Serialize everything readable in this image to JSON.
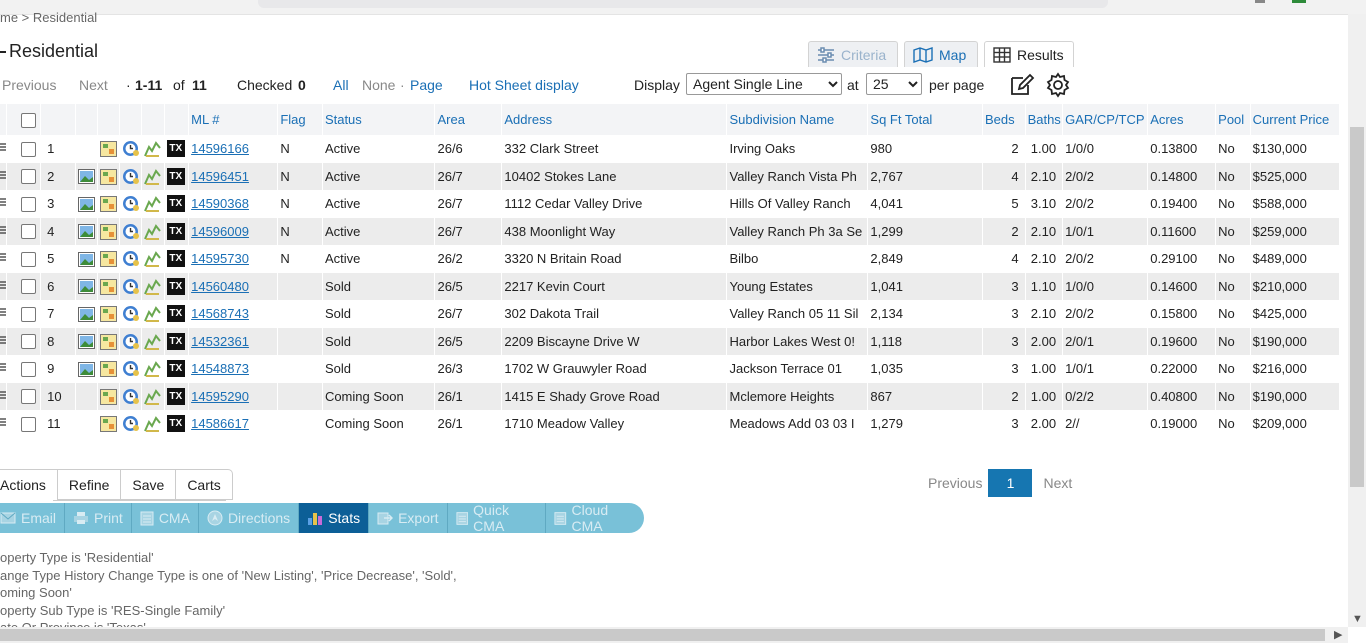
{
  "breadcrumb": "me > Residential",
  "page_title": "Residential",
  "view_tabs": [
    {
      "label": "Criteria",
      "icon": "sliders-icon"
    },
    {
      "label": "Map",
      "icon": "map-icon"
    },
    {
      "label": "Results",
      "icon": "grid-icon"
    }
  ],
  "toolbar": {
    "previous": "Previous",
    "next": "Next",
    "range_prefix": "·",
    "range": "1-11",
    "of_label": "of",
    "total": "11",
    "checked_label": "Checked",
    "checked_count": "0",
    "all": "All",
    "none": "None",
    "dot": "·",
    "page": "Page",
    "hot_sheet": "Hot Sheet display",
    "display_label": "Display",
    "display_value": "Agent Single Line",
    "at_label": "at",
    "per_page_value": "25",
    "per_page_label": "per page"
  },
  "columns": [
    "ML #",
    "Flag",
    "Status",
    "Area",
    "Address",
    "Subdivision Name",
    "Sq Ft Total",
    "Beds",
    "Baths",
    "GAR/CP/TCP",
    "Acres",
    "Pool",
    "Current Price"
  ],
  "rows": [
    {
      "n": "1",
      "photo": false,
      "ml": "14596166",
      "flag": "N",
      "status": "Active",
      "area": "26/6",
      "address": "332 Clark Street",
      "subdivision": "Irving Oaks",
      "sqft": "980",
      "beds": "2",
      "baths": "1.00",
      "gar": "1/0/0",
      "acres": "0.13800",
      "pool": "No",
      "price": "$130,000"
    },
    {
      "n": "2",
      "photo": true,
      "ml": "14596451",
      "flag": "N",
      "status": "Active",
      "area": "26/7",
      "address": "10402 Stokes Lane",
      "subdivision": "Valley Ranch Vista Ph",
      "sqft": "2,767",
      "beds": "4",
      "baths": "2.10",
      "gar": "2/0/2",
      "acres": "0.14800",
      "pool": "No",
      "price": "$525,000"
    },
    {
      "n": "3",
      "photo": true,
      "ml": "14590368",
      "flag": "N",
      "status": "Active",
      "area": "26/7",
      "address": "1112 Cedar Valley Drive",
      "subdivision": "Hills Of Valley Ranch",
      "sqft": "4,041",
      "beds": "5",
      "baths": "3.10",
      "gar": "2/0/2",
      "acres": "0.19400",
      "pool": "No",
      "price": "$588,000"
    },
    {
      "n": "4",
      "photo": true,
      "ml": "14596009",
      "flag": "N",
      "status": "Active",
      "area": "26/7",
      "address": "438 Moonlight Way",
      "subdivision": "Valley Ranch Ph 3a Se",
      "sqft": "1,299",
      "beds": "2",
      "baths": "2.10",
      "gar": "1/0/1",
      "acres": "0.11600",
      "pool": "No",
      "price": "$259,000"
    },
    {
      "n": "5",
      "photo": true,
      "ml": "14595730",
      "flag": "N",
      "status": "Active",
      "area": "26/2",
      "address": "3320 N Britain Road",
      "subdivision": "Bilbo",
      "sqft": "2,849",
      "beds": "4",
      "baths": "2.10",
      "gar": "2/0/2",
      "acres": "0.29100",
      "pool": "No",
      "price": "$489,000"
    },
    {
      "n": "6",
      "photo": true,
      "ml": "14560480",
      "flag": "",
      "status": "Sold",
      "area": "26/5",
      "address": "2217 Kevin Court",
      "subdivision": "Young Estates",
      "sqft": "1,041",
      "beds": "3",
      "baths": "1.10",
      "gar": "1/0/0",
      "acres": "0.14600",
      "pool": "No",
      "price": "$210,000"
    },
    {
      "n": "7",
      "photo": true,
      "ml": "14568743",
      "flag": "",
      "status": "Sold",
      "area": "26/7",
      "address": "302 Dakota Trail",
      "subdivision": "Valley Ranch 05 11 Sil",
      "sqft": "2,134",
      "beds": "3",
      "baths": "2.10",
      "gar": "2/0/2",
      "acres": "0.15800",
      "pool": "No",
      "price": "$425,000"
    },
    {
      "n": "8",
      "photo": true,
      "ml": "14532361",
      "flag": "",
      "status": "Sold",
      "area": "26/5",
      "address": "2209 Biscayne Drive W",
      "subdivision": "Harbor Lakes West 0!",
      "sqft": "1,118",
      "beds": "3",
      "baths": "2.00",
      "gar": "2/0/1",
      "acres": "0.19600",
      "pool": "No",
      "price": "$190,000"
    },
    {
      "n": "9",
      "photo": true,
      "ml": "14548873",
      "flag": "",
      "status": "Sold",
      "area": "26/3",
      "address": "1702 W Grauwyler Road",
      "subdivision": "Jackson Terrace 01",
      "sqft": "1,035",
      "beds": "3",
      "baths": "1.00",
      "gar": "1/0/1",
      "acres": "0.22000",
      "pool": "No",
      "price": "$216,000"
    },
    {
      "n": "10",
      "photo": false,
      "ml": "14595290",
      "flag": "",
      "status": "Coming Soon",
      "area": "26/1",
      "address": "1415 E Shady Grove Road",
      "subdivision": "Mclemore Heights",
      "sqft": "867",
      "beds": "2",
      "baths": "1.00",
      "gar": "0/2/2",
      "acres": "0.40800",
      "pool": "No",
      "price": "$190,000"
    },
    {
      "n": "11",
      "photo": false,
      "ml": "14586617",
      "flag": "",
      "status": "Coming Soon",
      "area": "26/1",
      "address": "1710 Meadow Valley",
      "subdivision": "Meadows Add 03 03 I",
      "sqft": "1,279",
      "beds": "3",
      "baths": "2.00",
      "gar": "2//",
      "acres": "0.19000",
      "pool": "No",
      "price": "$209,000"
    }
  ],
  "row_icon_tx": "TX",
  "bottom_tabs": [
    "Actions",
    "Refine",
    "Save",
    "Carts"
  ],
  "pager": {
    "previous": "Previous",
    "current": "1",
    "next": "Next"
  },
  "action_buttons": [
    {
      "label": "Email",
      "icon": "email-icon"
    },
    {
      "label": "Print",
      "icon": "print-icon"
    },
    {
      "label": "CMA",
      "icon": "cma-icon"
    },
    {
      "label": "Directions",
      "icon": "directions-icon"
    },
    {
      "label": "Stats",
      "icon": "stats-icon"
    },
    {
      "label": "Export",
      "icon": "export-icon"
    },
    {
      "label": "Quick CMA",
      "icon": "quick-cma-icon"
    },
    {
      "label": "Cloud CMA",
      "icon": "cloud-cma-icon"
    }
  ],
  "criteria": [
    "operty Type is 'Residential'",
    "ange Type History Change Type is one of 'New Listing', 'Price Decrease', 'Sold',",
    "oming Soon'",
    "operty Sub Type is 'RES-Single Family'",
    "ate Or Province is 'Texas'"
  ],
  "colors": {
    "link": "#1a6fb5",
    "accent": "#1676b1",
    "action_bar": "#79c1d8",
    "action_active": "#0c5f97"
  }
}
